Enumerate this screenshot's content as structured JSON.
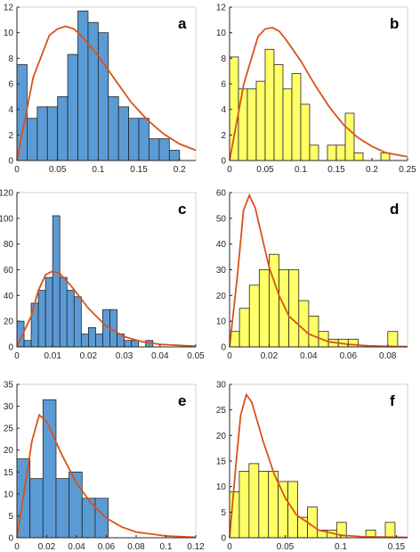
{
  "colors": {
    "blue_bar": "#5b9bd5",
    "yellow_bar": "#ffff66",
    "curve": "#d95319"
  },
  "chart_data": [
    {
      "panel": "a",
      "type": "bar",
      "subtype": "histogram with fitted density curve",
      "bar_color": "#5b9bd5",
      "curve_color": "#d95319",
      "xlim": [
        0,
        0.22
      ],
      "ylim": [
        0,
        12
      ],
      "xticks": [
        0,
        0.05,
        0.1,
        0.15,
        0.2
      ],
      "yticks": [
        0,
        2,
        4,
        6,
        8,
        10,
        12
      ],
      "xtick_labels": [
        "0",
        "0.05",
        "0.1",
        "0.15",
        "0.2"
      ],
      "ytick_labels": [
        "0",
        "2",
        "4",
        "6",
        "8",
        "10",
        "12"
      ],
      "bin_edges": [
        0,
        0.0125,
        0.025,
        0.0375,
        0.05,
        0.0625,
        0.075,
        0.0875,
        0.1,
        0.1125,
        0.125,
        0.1375,
        0.15,
        0.1625,
        0.175,
        0.1875,
        0.2
      ],
      "values": [
        7.5,
        3.3,
        4.2,
        4.2,
        5.0,
        8.3,
        11.7,
        10.8,
        10.0,
        5.0,
        4.2,
        3.3,
        3.3,
        1.7,
        1.7,
        0.8
      ],
      "curve": {
        "x": [
          0,
          0.02,
          0.04,
          0.05,
          0.06,
          0.07,
          0.08,
          0.1,
          0.12,
          0.14,
          0.16,
          0.18,
          0.2,
          0.22
        ],
        "y": [
          0,
          6.5,
          9.8,
          10.3,
          10.5,
          10.3,
          9.7,
          8.2,
          6.4,
          4.6,
          3.2,
          2.1,
          1.3,
          0.8
        ]
      }
    },
    {
      "panel": "b",
      "type": "bar",
      "subtype": "histogram with fitted density curve",
      "bar_color": "#ffff66",
      "curve_color": "#d95319",
      "xlim": [
        0,
        0.25
      ],
      "ylim": [
        0,
        12
      ],
      "xticks": [
        0,
        0.05,
        0.1,
        0.15,
        0.2,
        0.25
      ],
      "yticks": [
        0,
        2,
        4,
        6,
        8,
        10,
        12
      ],
      "xtick_labels": [
        "0",
        "0.05",
        "0.1",
        "0.15",
        "0.2",
        "0.25"
      ],
      "ytick_labels": [
        "0",
        "2",
        "4",
        "6",
        "8",
        "10",
        "12"
      ],
      "bin_edges": [
        0,
        0.0125,
        0.025,
        0.0375,
        0.05,
        0.0625,
        0.075,
        0.0875,
        0.1,
        0.1125,
        0.125,
        0.1375,
        0.15,
        0.1625,
        0.175,
        0.1875,
        0.2,
        0.2125,
        0.225,
        0.2375
      ],
      "values": [
        8.1,
        5.6,
        5.6,
        6.2,
        8.7,
        7.5,
        5.6,
        6.8,
        4.4,
        1.2,
        0.0,
        1.2,
        1.2,
        3.7,
        0.6,
        0.0,
        0.0,
        0.6,
        0.0
      ],
      "curve": {
        "x": [
          0,
          0.02,
          0.04,
          0.05,
          0.06,
          0.07,
          0.08,
          0.1,
          0.12,
          0.14,
          0.16,
          0.18,
          0.2,
          0.22,
          0.25
        ],
        "y": [
          0,
          6.0,
          9.7,
          10.3,
          10.4,
          10.1,
          9.4,
          7.8,
          5.9,
          4.2,
          2.8,
          1.8,
          1.1,
          0.6,
          0.3
        ]
      }
    },
    {
      "panel": "c",
      "type": "bar",
      "subtype": "histogram with fitted density curve",
      "bar_color": "#5b9bd5",
      "curve_color": "#d95319",
      "xlim": [
        0,
        0.05
      ],
      "ylim": [
        0,
        120
      ],
      "xticks": [
        0,
        0.01,
        0.02,
        0.03,
        0.04,
        0.05
      ],
      "yticks": [
        0,
        20,
        40,
        60,
        80,
        100,
        120
      ],
      "xtick_labels": [
        "0",
        "0.01",
        "0.02",
        "0.03",
        "0.04",
        "0.05"
      ],
      "ytick_labels": [
        "0",
        "20",
        "40",
        "60",
        "80",
        "100",
        "120"
      ],
      "bin_edges": [
        0,
        0.002,
        0.004,
        0.006,
        0.008,
        0.01,
        0.012,
        0.014,
        0.016,
        0.018,
        0.02,
        0.022,
        0.024,
        0.026,
        0.028,
        0.03,
        0.032,
        0.034,
        0.036,
        0.038
      ],
      "values": [
        20,
        5,
        34,
        44,
        54,
        102,
        54,
        44,
        39,
        10,
        15,
        10,
        29,
        29,
        10,
        5,
        5,
        0,
        5
      ],
      "curve": {
        "x": [
          0,
          0.004,
          0.006,
          0.008,
          0.01,
          0.012,
          0.015,
          0.02,
          0.025,
          0.03,
          0.035,
          0.04,
          0.05
        ],
        "y": [
          0,
          24,
          44,
          56,
          59,
          57,
          48,
          30,
          16,
          8,
          4,
          2,
          0.5
        ]
      }
    },
    {
      "panel": "d",
      "type": "bar",
      "subtype": "histogram with fitted density curve",
      "bar_color": "#ffff66",
      "curve_color": "#d95319",
      "xlim": [
        0,
        0.09
      ],
      "ylim": [
        0,
        60
      ],
      "xticks": [
        0,
        0.02,
        0.04,
        0.06,
        0.08
      ],
      "yticks": [
        0,
        10,
        20,
        30,
        40,
        50,
        60
      ],
      "xtick_labels": [
        "0",
        "0.02",
        "0.04",
        "0.06",
        "0.08"
      ],
      "ytick_labels": [
        "0",
        "10",
        "20",
        "30",
        "40",
        "50",
        "60"
      ],
      "bin_edges": [
        0,
        0.005,
        0.01,
        0.015,
        0.02,
        0.025,
        0.03,
        0.035,
        0.04,
        0.045,
        0.05,
        0.055,
        0.06,
        0.065,
        0.07,
        0.075,
        0.08,
        0.085
      ],
      "values": [
        6,
        15,
        24,
        30,
        36,
        30,
        30,
        18,
        12,
        6,
        3,
        3,
        3,
        0,
        0,
        0,
        6
      ],
      "curve": {
        "x": [
          0,
          0.004,
          0.007,
          0.01,
          0.013,
          0.016,
          0.02,
          0.025,
          0.03,
          0.04,
          0.05,
          0.06,
          0.07,
          0.08,
          0.09
        ],
        "y": [
          0,
          28,
          53,
          59,
          54,
          44,
          31,
          20,
          12,
          5,
          2,
          1,
          0.4,
          0.2,
          0.1
        ]
      }
    },
    {
      "panel": "e",
      "type": "bar",
      "subtype": "histogram with fitted density curve",
      "bar_color": "#5b9bd5",
      "curve_color": "#d95319",
      "xlim": [
        0,
        0.12
      ],
      "ylim": [
        0,
        35
      ],
      "xticks": [
        0,
        0.02,
        0.04,
        0.06,
        0.08,
        0.1,
        0.12
      ],
      "yticks": [
        0,
        5,
        10,
        15,
        20,
        25,
        30,
        35
      ],
      "xtick_labels": [
        "0",
        "0.02",
        "0.04",
        "0.06",
        "0.08",
        "0.1",
        "0.12"
      ],
      "ytick_labels": [
        "0",
        "5",
        "10",
        "15",
        "20",
        "25",
        "30",
        "35"
      ],
      "bin_edges": [
        0,
        0.00875,
        0.0175,
        0.02625,
        0.035,
        0.04375,
        0.0525,
        0.06125
      ],
      "values": [
        18,
        13.5,
        31.5,
        13.5,
        15,
        9,
        9
      ],
      "curve": {
        "x": [
          0,
          0.006,
          0.01,
          0.015,
          0.02,
          0.03,
          0.04,
          0.05,
          0.06,
          0.07,
          0.08,
          0.1,
          0.12
        ],
        "y": [
          0,
          13,
          22,
          28,
          26.5,
          19,
          12.5,
          7.8,
          4.5,
          2.5,
          1.3,
          0.4,
          0.1
        ]
      }
    },
    {
      "panel": "f",
      "type": "bar",
      "subtype": "histogram with fitted density curve",
      "bar_color": "#ffff66",
      "curve_color": "#d95319",
      "xlim": [
        0,
        0.16
      ],
      "ylim": [
        0,
        30
      ],
      "xticks": [
        0,
        0.05,
        0.1,
        0.15
      ],
      "yticks": [
        0,
        5,
        10,
        15,
        20,
        25,
        30
      ],
      "xtick_labels": [
        "0",
        "0.05",
        "0.1",
        "0.15"
      ],
      "ytick_labels": [
        "0",
        "5",
        "10",
        "15",
        "20",
        "25",
        "30"
      ],
      "bin_edges": [
        0,
        0.00875,
        0.0175,
        0.02625,
        0.035,
        0.04375,
        0.0525,
        0.06125,
        0.07,
        0.07875,
        0.0875,
        0.09625,
        0.105,
        0.11375,
        0.1225,
        0.13125,
        0.14,
        0.14875
      ],
      "values": [
        9,
        13,
        14.5,
        13,
        13,
        11,
        11,
        4,
        6,
        1.5,
        1.5,
        3,
        0,
        0,
        1.5,
        0,
        3
      ],
      "curve": {
        "x": [
          0,
          0.006,
          0.01,
          0.015,
          0.02,
          0.03,
          0.04,
          0.05,
          0.06,
          0.08,
          0.1,
          0.12,
          0.16
        ],
        "y": [
          0,
          15,
          24,
          28,
          26.5,
          19,
          12.5,
          7.8,
          4.5,
          1.5,
          0.5,
          0.2,
          0.05
        ]
      }
    }
  ]
}
